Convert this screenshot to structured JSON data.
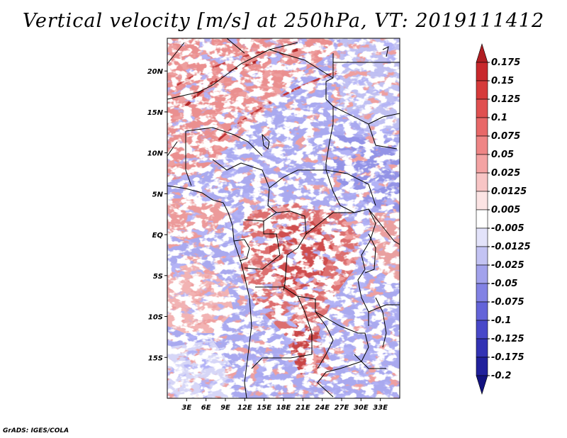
{
  "title": "Vertical velocity [m/s] at 250hPa, VT: 2019111412",
  "credit": "GrADS: IGES/COLA",
  "map": {
    "lon_range": [
      0,
      36
    ],
    "lat_range": [
      -20,
      24
    ],
    "lat_ticks": [
      {
        "value": 20,
        "label": "20N"
      },
      {
        "value": 15,
        "label": "15N"
      },
      {
        "value": 10,
        "label": "10N"
      },
      {
        "value": 5,
        "label": "5N"
      },
      {
        "value": 0,
        "label": "EQ"
      },
      {
        "value": -5,
        "label": "5S"
      },
      {
        "value": -10,
        "label": "10S"
      },
      {
        "value": -15,
        "label": "15S"
      }
    ],
    "lon_ticks": [
      {
        "value": 3,
        "label": "3E"
      },
      {
        "value": 6,
        "label": "6E"
      },
      {
        "value": 9,
        "label": "9E"
      },
      {
        "value": 12,
        "label": "12E"
      },
      {
        "value": 15,
        "label": "15E"
      },
      {
        "value": 18,
        "label": "18E"
      },
      {
        "value": 21,
        "label": "21E"
      },
      {
        "value": 24,
        "label": "24E"
      },
      {
        "value": 27,
        "label": "27E"
      },
      {
        "value": 30,
        "label": "30E"
      },
      {
        "value": 33,
        "label": "33E"
      }
    ]
  },
  "colorbar": {
    "labels": [
      "0.175",
      "0.15",
      "0.125",
      "0.1",
      "0.075",
      "0.05",
      "0.025",
      "0.0125",
      "0.005",
      "-0.005",
      "-0.0125",
      "-0.025",
      "-0.05",
      "-0.075",
      "-0.1",
      "-0.125",
      "-0.175",
      "-0.2"
    ],
    "colors": [
      "#b01e22",
      "#c8282c",
      "#d63a3a",
      "#e05050",
      "#e86868",
      "#ef8585",
      "#f4a3a3",
      "#f8c5c5",
      "#fce4e4",
      "#ffffff",
      "#e3e3fa",
      "#c3c3f3",
      "#a2a2ec",
      "#8282e4",
      "#6464d9",
      "#4848c9",
      "#3232b4",
      "#20209c",
      "#121280"
    ]
  }
}
